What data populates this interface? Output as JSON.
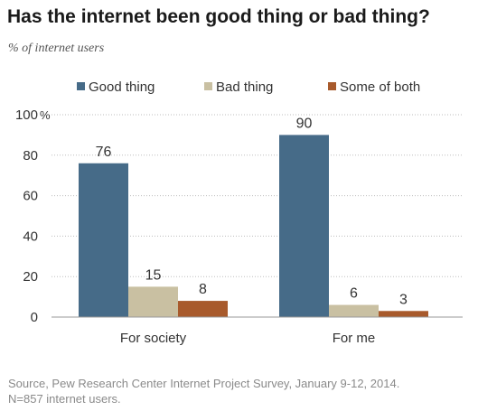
{
  "header": {
    "title": "Has the internet been good thing or bad thing?",
    "subtitle": "% of internet users"
  },
  "footer": {
    "source_line1": "Source, Pew Research Center Internet Project Survey, January 9-12, 2014.",
    "source_line2": "N=857 internet users."
  },
  "chart_data": {
    "type": "bar",
    "title": "Has the internet been good thing or bad thing?",
    "subtitle": "% of internet users",
    "categories": [
      "For society",
      "For me"
    ],
    "series": [
      {
        "name": "Good thing",
        "values": [
          76,
          90
        ],
        "color": "#466B88"
      },
      {
        "name": "Bad thing",
        "values": [
          15,
          6
        ],
        "color": "#C9C0A2"
      },
      {
        "name": "Some of both",
        "values": [
          8,
          3
        ],
        "color": "#A85A2C"
      }
    ],
    "ylim": [
      0,
      100
    ],
    "yticks": [
      0,
      20,
      40,
      60,
      80,
      100
    ],
    "ytick_labels": [
      "0",
      "20",
      "40",
      "60",
      "80",
      "100"
    ],
    "y_unit": "%",
    "grid": true,
    "legend_position": "top",
    "data_labels": true
  }
}
